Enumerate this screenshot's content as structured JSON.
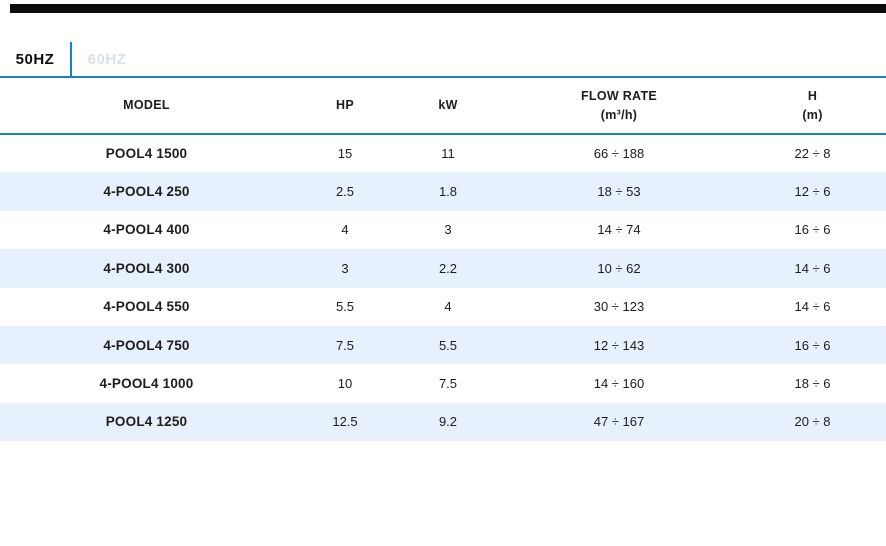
{
  "top_bar": {
    "color": "#0b0b0b"
  },
  "tabs": [
    {
      "label": "50HZ",
      "active": true
    },
    {
      "label": "60HZ",
      "active": false
    }
  ],
  "table": {
    "columns": [
      {
        "label": "MODEL",
        "sub": ""
      },
      {
        "label": "HP",
        "sub": ""
      },
      {
        "label": "kW",
        "sub": ""
      },
      {
        "label": "FLOW RATE",
        "sub": "(m³/h)"
      },
      {
        "label": "H",
        "sub": "(m)"
      }
    ],
    "rows": [
      {
        "model": "POOL4 1500",
        "hp": "15",
        "kw": "11",
        "flow_rate": "66 ÷ 188",
        "h": "22 ÷ 8"
      },
      {
        "model": "4-POOL4 250",
        "hp": "2.5",
        "kw": "1.8",
        "flow_rate": "18 ÷ 53",
        "h": "12 ÷ 6"
      },
      {
        "model": "4-POOL4 400",
        "hp": "4",
        "kw": "3",
        "flow_rate": "14 ÷ 74",
        "h": "16 ÷ 6"
      },
      {
        "model": "4-POOL4 300",
        "hp": "3",
        "kw": "2.2",
        "flow_rate": "10 ÷ 62",
        "h": "14 ÷ 6"
      },
      {
        "model": "4-POOL4 550",
        "hp": "5.5",
        "kw": "4",
        "flow_rate": "30 ÷ 123",
        "h": "14 ÷ 6"
      },
      {
        "model": "4-POOL4 750",
        "hp": "7.5",
        "kw": "5.5",
        "flow_rate": "12 ÷ 143",
        "h": "16 ÷ 6"
      },
      {
        "model": "4-POOL4 1000",
        "hp": "10",
        "kw": "7.5",
        "flow_rate": "14 ÷ 160",
        "h": "18 ÷ 6"
      },
      {
        "model": "POOL4 1250",
        "hp": "12.5",
        "kw": "9.2",
        "flow_rate": "47 ÷ 167",
        "h": "20 ÷ 8"
      }
    ]
  },
  "colors": {
    "accent_blue": "#1b7ed3",
    "row_alt_blue": "#e7f1fd",
    "inactive_tab_text": "#dbe0e5",
    "top_bar_black": "#0b0b0b",
    "text_dark": "#1d1d1b"
  }
}
